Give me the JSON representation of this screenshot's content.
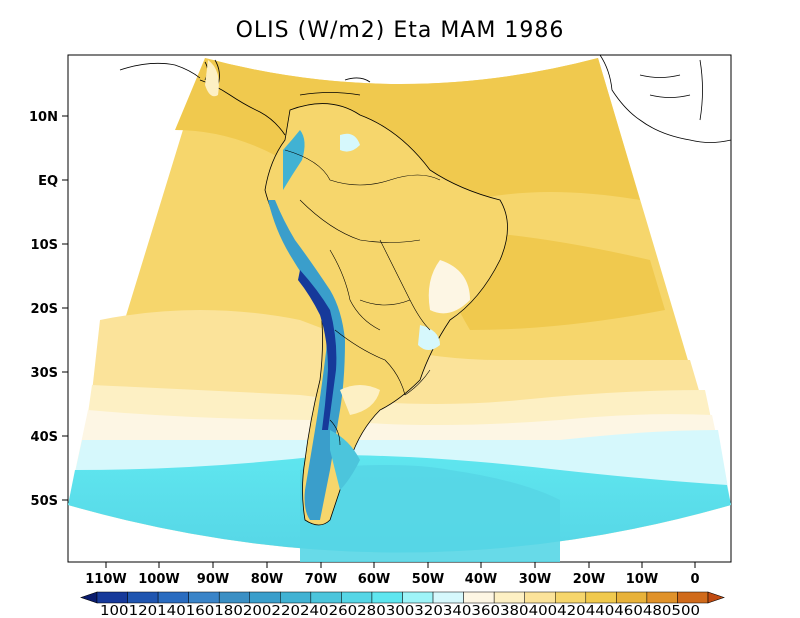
{
  "title": "OLIS (W/m2) Eta MAM 1986",
  "map": {
    "variable": "OLIS",
    "units": "W/m2",
    "model": "Eta",
    "season": "MAM",
    "year": "1986",
    "region": "South America",
    "lon_range": [
      -117,
      6
    ],
    "lat_range": [
      -60,
      20
    ],
    "lat_ticks": [
      "10N",
      "EQ",
      "10S",
      "20S",
      "30S",
      "40S",
      "50S"
    ],
    "lon_ticks": [
      "110W",
      "100W",
      "90W",
      "80W",
      "70W",
      "60W",
      "50W",
      "40W",
      "30W",
      "20W",
      "10W",
      "0"
    ]
  },
  "colorbar": {
    "label_text": "100120140160180200220240260280300320340360380400420440460480500",
    "levels": [
      100,
      120,
      140,
      160,
      180,
      200,
      220,
      240,
      260,
      280,
      300,
      320,
      340,
      360,
      380,
      400,
      420,
      440,
      460,
      480,
      500
    ],
    "colors": [
      "#0a1c6e",
      "#16399a",
      "#1f55b0",
      "#2a6cc0",
      "#3a84c8",
      "#3b8fc4",
      "#3a9ecb",
      "#41b2d3",
      "#4cc5dc",
      "#56d6e6",
      "#5fe6ef",
      "#9ef4f8",
      "#d6f8fc",
      "#fdf6e4",
      "#fdf0c4",
      "#fbe39a",
      "#f6d66c",
      "#f0c94e",
      "#e8b23a",
      "#e0922a",
      "#d06a1a",
      "#c04a10"
    ]
  }
}
